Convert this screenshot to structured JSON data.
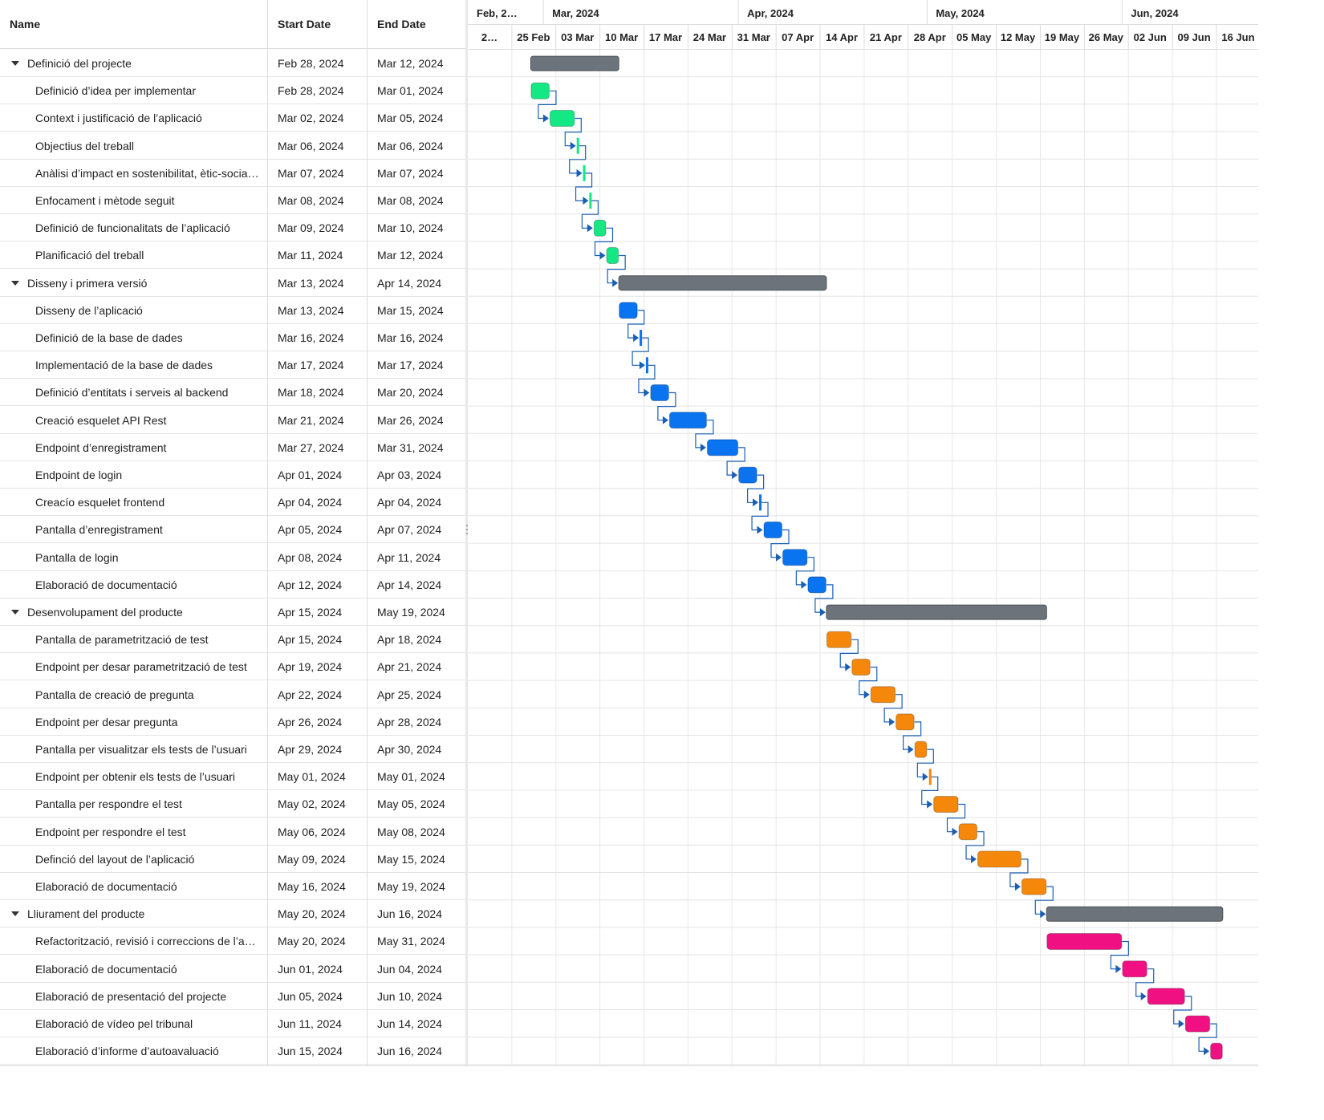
{
  "grid": {
    "headers": {
      "name": "Name",
      "start": "Start Date",
      "end": "End Date"
    },
    "rows": [
      {
        "name": "Definició del projecte",
        "start": "Feb 28, 2024",
        "end": "Mar 12, 2024",
        "summary": true
      },
      {
        "name": "Definició d’idea per implementar",
        "start": "Feb 28, 2024",
        "end": "Mar 01, 2024"
      },
      {
        "name": "Context i justificació de l’aplicació",
        "start": "Mar 02, 2024",
        "end": "Mar 05, 2024"
      },
      {
        "name": "Objectius del treball",
        "start": "Mar 06, 2024",
        "end": "Mar 06, 2024"
      },
      {
        "name": "Anàlisi d’impact en sostenibilitat, ètic-social …",
        "start": "Mar 07, 2024",
        "end": "Mar 07, 2024"
      },
      {
        "name": "Enfocament i mètode seguit",
        "start": "Mar 08, 2024",
        "end": "Mar 08, 2024"
      },
      {
        "name": "Definició de funcionalitats de l’aplicació",
        "start": "Mar 09, 2024",
        "end": "Mar 10, 2024"
      },
      {
        "name": "Planificació del treball",
        "start": "Mar 11, 2024",
        "end": "Mar 12, 2024"
      },
      {
        "name": "Disseny i primera versió",
        "start": "Mar 13, 2024",
        "end": "Apr 14, 2024",
        "summary": true
      },
      {
        "name": "Disseny de l’aplicació",
        "start": "Mar 13, 2024",
        "end": "Mar 15, 2024"
      },
      {
        "name": "Definició de la base de dades",
        "start": "Mar 16, 2024",
        "end": "Mar 16, 2024"
      },
      {
        "name": "Implementació de la base de dades",
        "start": "Mar 17, 2024",
        "end": "Mar 17, 2024"
      },
      {
        "name": "Definició d’entitats i serveis al backend",
        "start": "Mar 18, 2024",
        "end": "Mar 20, 2024"
      },
      {
        "name": "Creació esquelet API Rest",
        "start": "Mar 21, 2024",
        "end": "Mar 26, 2024"
      },
      {
        "name": "Endpoint d’enregistrament",
        "start": "Mar 27, 2024",
        "end": "Mar 31, 2024"
      },
      {
        "name": "Endpoint de login",
        "start": "Apr 01, 2024",
        "end": "Apr 03, 2024"
      },
      {
        "name": "Creacío esquelet frontend",
        "start": "Apr 04, 2024",
        "end": "Apr 04, 2024"
      },
      {
        "name": "Pantalla d’enregistrament",
        "start": "Apr 05, 2024",
        "end": "Apr 07, 2024"
      },
      {
        "name": "Pantalla de login",
        "start": "Apr 08, 2024",
        "end": "Apr 11, 2024"
      },
      {
        "name": "Elaboració de documentació",
        "start": "Apr 12, 2024",
        "end": "Apr 14, 2024"
      },
      {
        "name": "Desenvolupament del producte",
        "start": "Apr 15, 2024",
        "end": "May 19, 2024",
        "summary": true
      },
      {
        "name": "Pantalla de parametrització de test",
        "start": "Apr 15, 2024",
        "end": "Apr 18, 2024"
      },
      {
        "name": "Endpoint per desar parametrització de test",
        "start": "Apr 19, 2024",
        "end": "Apr 21, 2024"
      },
      {
        "name": "Pantalla de creació de pregunta",
        "start": "Apr 22, 2024",
        "end": "Apr 25, 2024"
      },
      {
        "name": "Endpoint per desar pregunta",
        "start": "Apr 26, 2024",
        "end": "Apr 28, 2024"
      },
      {
        "name": "Pantalla per visualitzar els tests de l’usuari",
        "start": "Apr 29, 2024",
        "end": "Apr 30, 2024"
      },
      {
        "name": "Endpoint per obtenir els tests de l’usuari",
        "start": "May 01, 2024",
        "end": "May 01, 2024"
      },
      {
        "name": "Pantalla per respondre el test",
        "start": "May 02, 2024",
        "end": "May 05, 2024"
      },
      {
        "name": "Endpoint per respondre el test",
        "start": "May 06, 2024",
        "end": "May 08, 2024"
      },
      {
        "name": "Definció del layout de l’aplicació",
        "start": "May 09, 2024",
        "end": "May 15, 2024"
      },
      {
        "name": "Elaboració de documentació",
        "start": "May 16, 2024",
        "end": "May 19, 2024"
      },
      {
        "name": "Lliurament del producte",
        "start": "May 20, 2024",
        "end": "Jun 16, 2024",
        "summary": true
      },
      {
        "name": "Refactorització, revisió i correccions de l’apli…",
        "start": "May 20, 2024",
        "end": "May 31, 2024"
      },
      {
        "name": "Elaboració de documentació",
        "start": "Jun 01, 2024",
        "end": "Jun 04, 2024"
      },
      {
        "name": "Elaboració de presentació del projecte",
        "start": "Jun 05, 2024",
        "end": "Jun 10, 2024"
      },
      {
        "name": "Elaboració de vídeo pel tribunal",
        "start": "Jun 11, 2024",
        "end": "Jun 14, 2024"
      },
      {
        "name": "Elaboració d’informe d’autoavaluació",
        "start": "Jun 15, 2024",
        "end": "Jun 16, 2024"
      }
    ]
  },
  "timeline": {
    "months": [
      "Feb, 2…",
      "Mar, 2024",
      "Apr, 2024",
      "May, 2024",
      "Jun, 2024"
    ],
    "weeks": [
      "2…",
      "25 Feb",
      "03 Mar",
      "10 Mar",
      "17 Mar",
      "24 Mar",
      "31 Mar",
      "07 Apr",
      "14 Apr",
      "21 Apr",
      "28 Apr",
      "05 May",
      "12 May",
      "19 May",
      "26 May",
      "02 Jun",
      "09 Jun",
      "16 Jun"
    ]
  },
  "colors": {
    "summary": "#6c737a",
    "phase1": "#14e884",
    "phase2": "#0a73f0",
    "phase3": "#f5880a",
    "phase4": "#f01082",
    "link": "#1a5fb4"
  }
}
